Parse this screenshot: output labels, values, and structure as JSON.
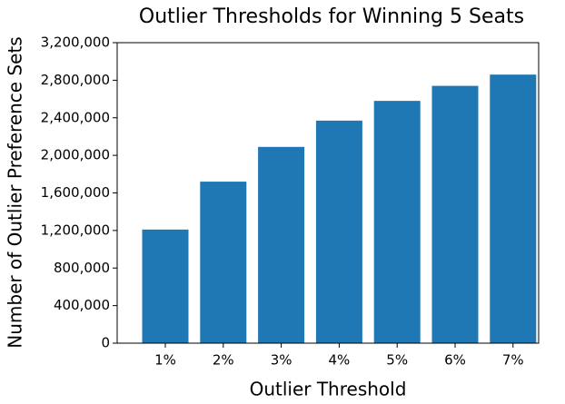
{
  "chart_data": {
    "type": "bar",
    "title": "Outlier Thresholds for Winning 5 Seats",
    "x_label": "Outlier Threshold",
    "y_label": "Number of Outlier Preference Sets",
    "categories": [
      "1%",
      "2%",
      "3%",
      "4%",
      "5%",
      "6%",
      "7%"
    ],
    "values": [
      1210000,
      1720000,
      2090000,
      2370000,
      2580000,
      2740000,
      2860000
    ],
    "color": "#1f77b4",
    "ylim": [
      0,
      3200000
    ],
    "yticks": [
      0,
      {
        "value": 400000,
        "label": "400,000"
      },
      {
        "value": 800000,
        "label": "800,000"
      },
      {
        "value": 1200000,
        "label": "1,200,000"
      },
      {
        "value": 1600000,
        "label": "1,600,000"
      },
      {
        "value": 2000000,
        "label": "2,000,000"
      },
      {
        "value": 2400000,
        "label": "2,400,000"
      },
      {
        "value": 2800000,
        "label": "2,800,000"
      },
      {
        "value": 3200000,
        "label": "3,200,000"
      }
    ],
    "grid": false
  }
}
